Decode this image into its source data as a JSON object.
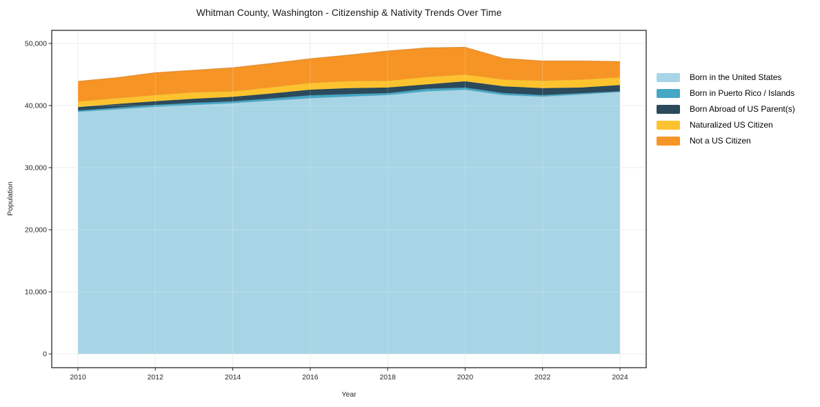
{
  "page": {
    "background": "#ffffff"
  },
  "colors": {
    "axis": "#262626",
    "grid": "#e8e8e8",
    "grid_over": "rgba(255,255,255,0.22)",
    "tick_text": "#262626"
  },
  "chart_data": {
    "type": "area",
    "stacked": true,
    "title": "Whitman County, Washington - Citizenship & Nativity Trends Over Time",
    "xlabel": "Year",
    "ylabel": "Population",
    "grid": true,
    "legend_position": "right-outside",
    "x": [
      2010,
      2011,
      2012,
      2013,
      2014,
      2015,
      2016,
      2017,
      2018,
      2019,
      2020,
      2021,
      2022,
      2023,
      2024
    ],
    "series": [
      {
        "name": "Born in the United States",
        "color": "#a8d5e6",
        "values": [
          39000,
          39400,
          39800,
          40100,
          40400,
          40800,
          41200,
          41450,
          41700,
          42300,
          42550,
          41700,
          41450,
          41800,
          42200
        ]
      },
      {
        "name": "Born in Puerto Rico / Islands",
        "color": "#46a7c5",
        "values": [
          200,
          250,
          300,
          350,
          300,
          350,
          450,
          400,
          300,
          400,
          350,
          300,
          250,
          200,
          100
        ]
      },
      {
        "name": "Born Abroad of US Parent(s)",
        "color": "#2b4a5c",
        "values": [
          550,
          600,
          600,
          650,
          700,
          800,
          900,
          950,
          900,
          700,
          1000,
          1100,
          1100,
          900,
          1000
        ]
      },
      {
        "name": "Naturalized US Citizen",
        "color": "#fdc32f",
        "values": [
          900,
          950,
          1000,
          1050,
          900,
          1000,
          1100,
          1150,
          1100,
          1200,
          1100,
          1100,
          1200,
          1300,
          1250
        ]
      },
      {
        "name": "Not a US Citizen",
        "color": "#f79426",
        "values": [
          3250,
          3300,
          3600,
          3550,
          3800,
          3850,
          3900,
          4200,
          4800,
          4700,
          4400,
          3400,
          3200,
          3000,
          2550
        ]
      }
    ],
    "x_ticks": [
      {
        "value": 2010,
        "label": "2010"
      },
      {
        "value": 2012,
        "label": "2012"
      },
      {
        "value": 2014,
        "label": "2014"
      },
      {
        "value": 2016,
        "label": "2016"
      },
      {
        "value": 2018,
        "label": "2018"
      },
      {
        "value": 2020,
        "label": "2020"
      },
      {
        "value": 2022,
        "label": "2022"
      },
      {
        "value": 2024,
        "label": "2024"
      }
    ],
    "y_ticks": [
      {
        "value": 0,
        "label": "0"
      },
      {
        "value": 10000,
        "label": "10,000"
      },
      {
        "value": 20000,
        "label": "20,000"
      },
      {
        "value": 30000,
        "label": "30,000"
      },
      {
        "value": 40000,
        "label": "40,000"
      },
      {
        "value": 50000,
        "label": "50,000"
      }
    ],
    "xlim": [
      2009.32,
      2024.68
    ],
    "ylim": [
      -2222,
      52111
    ]
  }
}
